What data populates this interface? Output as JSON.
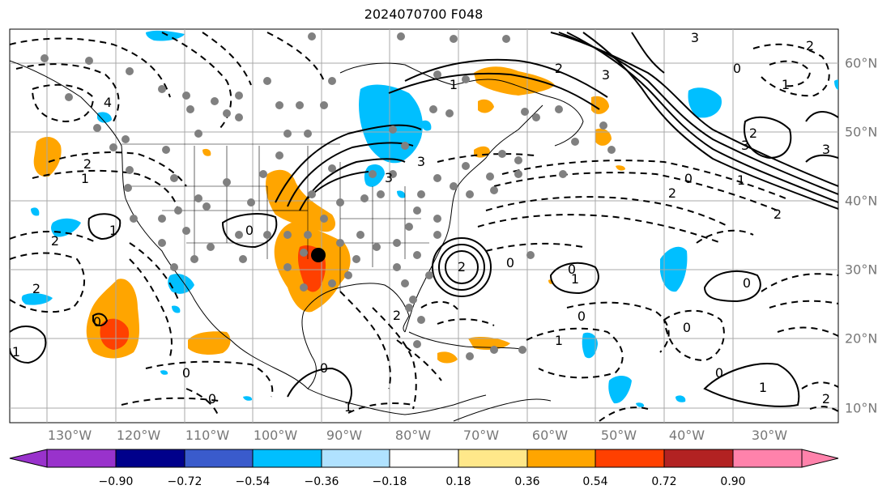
{
  "title": "2024070700 F048",
  "lon_labels": [
    "130°W",
    "120°W",
    "110°W",
    "100°W",
    "90°W",
    "80°W",
    "70°W",
    "60°W",
    "50°W",
    "40°W",
    "30°W"
  ],
  "lat_labels": [
    "60°N",
    "50°N",
    "40°N",
    "30°N",
    "20°N",
    "10°N"
  ],
  "colorbar": {
    "ticks": [
      "−0.90",
      "−0.72",
      "−0.54",
      "−0.36",
      "−0.18",
      "0.18",
      "0.36",
      "0.54",
      "0.72",
      "0.90"
    ],
    "colors": [
      "#9932cc",
      "#00008b",
      "#3a5bcc",
      "#00bfff",
      "#b0e2ff",
      "#ffffff",
      "#ffe88a",
      "#ffa500",
      "#ff4000",
      "#b22222",
      "#ff82ab"
    ]
  },
  "fill_colors": {
    "orange": "#ffa500",
    "red": "#ff4000",
    "blue": "#00bfff",
    "light_blue": "#b0e2ff"
  },
  "marker_point": {
    "label": "location-marker",
    "color": "#000000"
  },
  "station_dots_color": "#808080",
  "contour_labels": [
    "4",
    "2",
    "1",
    "2",
    "2",
    "1",
    "0",
    "0",
    "0",
    "1",
    "2",
    "3",
    "3",
    "1",
    "0",
    "1",
    "2",
    "3",
    "3",
    "1",
    "0",
    "0",
    "1",
    "2",
    "1",
    "0",
    "0",
    "0",
    "1",
    "1",
    "0",
    "0",
    "2",
    "1",
    "0",
    "1",
    "0",
    "1",
    "2",
    "0",
    "2"
  ]
}
